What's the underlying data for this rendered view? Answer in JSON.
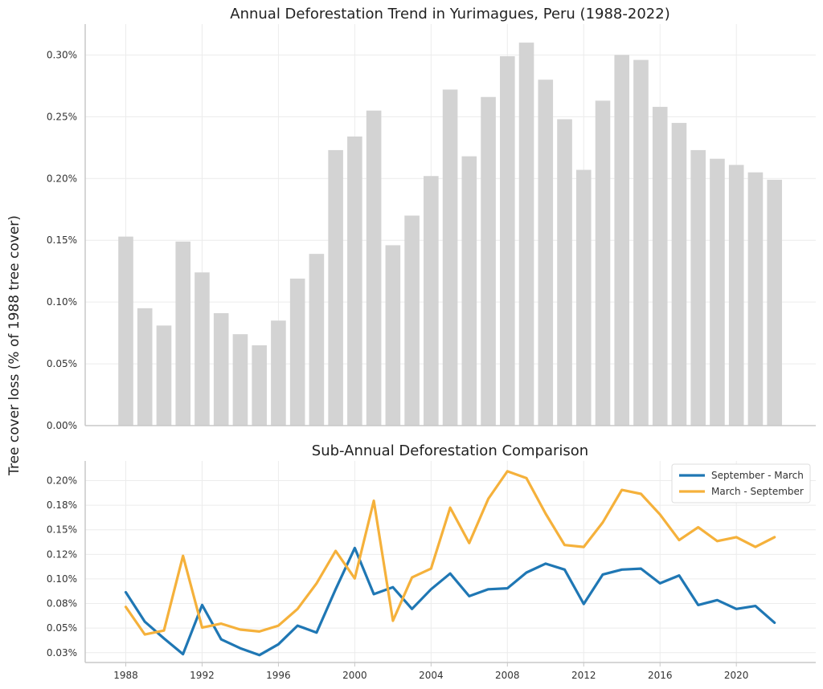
{
  "ylabel": "Tree cover loss (% of 1988 tree cover)",
  "colors": {
    "bar": "#d3d3d3",
    "sep_mar": "#1f77b4",
    "mar_sep": "#f5b13b",
    "grid": "#ececec",
    "axis": "#c8c8c8"
  },
  "chart_data": [
    {
      "type": "bar",
      "title": "Annual Deforestation Trend in Yurimagues, Peru (1988-2022)",
      "ylabel": "Tree cover loss (% of 1988 tree cover)",
      "categories": [
        1988,
        1989,
        1990,
        1991,
        1992,
        1993,
        1994,
        1995,
        1996,
        1997,
        1998,
        1999,
        2000,
        2001,
        2002,
        2003,
        2004,
        2005,
        2006,
        2007,
        2008,
        2009,
        2010,
        2011,
        2012,
        2013,
        2014,
        2015,
        2016,
        2017,
        2018,
        2019,
        2020,
        2021,
        2022
      ],
      "values": [
        0.153,
        0.095,
        0.081,
        0.149,
        0.124,
        0.091,
        0.074,
        0.065,
        0.085,
        0.119,
        0.139,
        0.223,
        0.234,
        0.255,
        0.146,
        0.17,
        0.202,
        0.272,
        0.218,
        0.266,
        0.299,
        0.31,
        0.28,
        0.248,
        0.207,
        0.263,
        0.3,
        0.296,
        0.258,
        0.245,
        0.223,
        0.216,
        0.211,
        0.205,
        0.199
      ],
      "ylim": [
        0,
        0.325
      ],
      "yticks": [
        0,
        0.05,
        0.1,
        0.15,
        0.2,
        0.25,
        0.3
      ],
      "ytick_labels": [
        "0.00%",
        "0.05%",
        "0.10%",
        "0.15%",
        "0.20%",
        "0.25%",
        "0.30%"
      ],
      "grid": true
    },
    {
      "type": "line",
      "title": "Sub-Annual Deforestation Comparison",
      "x": [
        1988,
        1989,
        1990,
        1991,
        1992,
        1993,
        1994,
        1995,
        1996,
        1997,
        1998,
        1999,
        2000,
        2001,
        2002,
        2003,
        2004,
        2005,
        2006,
        2007,
        2008,
        2009,
        2010,
        2011,
        2012,
        2013,
        2014,
        2015,
        2016,
        2017,
        2018,
        2019,
        2020,
        2021,
        2022
      ],
      "series": [
        {
          "name": "September - March",
          "color": "#1f77b4",
          "values": [
            0.0865,
            0.0565,
            0.0395,
            0.0235,
            0.0735,
            0.0385,
            0.0295,
            0.0225,
            0.0335,
            0.0525,
            0.0455,
            0.0895,
            0.1315,
            0.0845,
            0.0915,
            0.0695,
            0.0895,
            0.1055,
            0.0825,
            0.0895,
            0.0905,
            0.1065,
            0.1155,
            0.1095,
            0.0745,
            0.1045,
            0.1095,
            0.1105,
            0.0955,
            0.1035,
            0.0735,
            0.0785,
            0.0695,
            0.0725,
            0.0555
          ]
        },
        {
          "name": "March - September",
          "color": "#f5b13b",
          "values": [
            0.0715,
            0.0435,
            0.0475,
            0.1235,
            0.0505,
            0.0545,
            0.0485,
            0.0465,
            0.0525,
            0.0695,
            0.0955,
            0.1285,
            0.1005,
            0.1795,
            0.0575,
            0.1015,
            0.1105,
            0.1725,
            0.1365,
            0.1815,
            0.2095,
            0.2025,
            0.1665,
            0.1345,
            0.1325,
            0.1575,
            0.1905,
            0.1865,
            0.1655,
            0.1395,
            0.1525,
            0.1385,
            0.1425,
            0.1325,
            0.1425
          ]
        }
      ],
      "xticks": [
        1988,
        1992,
        1996,
        2000,
        2004,
        2008,
        2012,
        2016,
        2020
      ],
      "ylim": [
        0.015,
        0.22
      ],
      "yticks": [
        0.025,
        0.05,
        0.075,
        0.1,
        0.125,
        0.15,
        0.175,
        0.2
      ],
      "ytick_labels": [
        "0.03%",
        "0.05%",
        "0.08%",
        "0.10%",
        "0.12%",
        "0.15%",
        "0.18%",
        "0.20%"
      ],
      "grid": true,
      "legend": "top-right"
    }
  ]
}
